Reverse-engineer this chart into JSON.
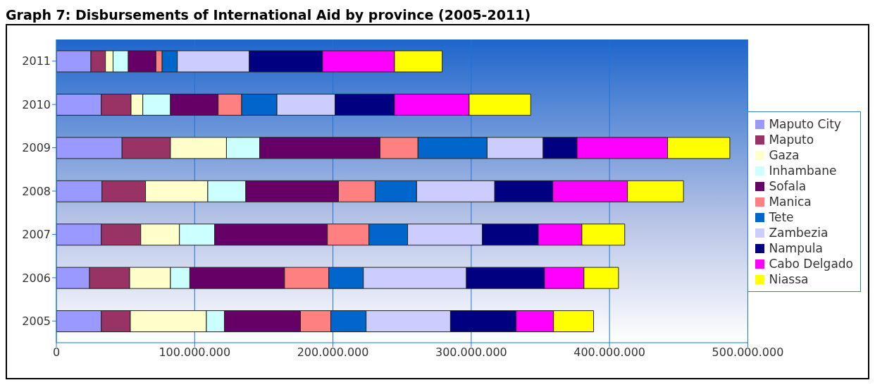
{
  "chart_data": {
    "type": "bar",
    "orientation": "horizontal",
    "stacked": true,
    "title": "Graph 7: Disbursements of International Aid by province (2005-2011)",
    "categories": [
      "2011",
      "2010",
      "2009",
      "2008",
      "2007",
      "2006",
      "2005"
    ],
    "series": [
      {
        "name": "Maputo City",
        "color": "#9999ff",
        "values": [
          25000000,
          32500000,
          47500000,
          33000000,
          32500000,
          24000000,
          32500000
        ]
      },
      {
        "name": "Maputo",
        "color": "#993366",
        "values": [
          10500000,
          21500000,
          35000000,
          31500000,
          28500000,
          29000000,
          21000000
        ]
      },
      {
        "name": "Gaza",
        "color": "#ffffcc",
        "values": [
          5500000,
          8500000,
          40500000,
          45000000,
          28000000,
          29500000,
          55000000
        ]
      },
      {
        "name": "Inhambane",
        "color": "#ccffff",
        "values": [
          11000000,
          20000000,
          24000000,
          27500000,
          25500000,
          14000000,
          13000000
        ]
      },
      {
        "name": "Sofala",
        "color": "#660066",
        "values": [
          20000000,
          34500000,
          87000000,
          67000000,
          81500000,
          68500000,
          55000000
        ]
      },
      {
        "name": "Manica",
        "color": "#ff8080",
        "values": [
          4500000,
          17000000,
          27500000,
          26500000,
          30000000,
          32000000,
          22000000
        ]
      },
      {
        "name": "Tete",
        "color": "#0066cc",
        "values": [
          11000000,
          25500000,
          50000000,
          30000000,
          28000000,
          25000000,
          25500000
        ]
      },
      {
        "name": "Zambezia",
        "color": "#ccccff",
        "values": [
          52000000,
          42000000,
          40500000,
          56500000,
          54000000,
          74500000,
          61000000
        ]
      },
      {
        "name": "Nampula",
        "color": "#000080",
        "values": [
          53000000,
          43000000,
          24500000,
          42000000,
          40500000,
          56500000,
          47500000
        ]
      },
      {
        "name": "Cabo Delgado",
        "color": "#ff00ff",
        "values": [
          52000000,
          54000000,
          65500000,
          54000000,
          31500000,
          28500000,
          27000000
        ]
      },
      {
        "name": "Niassa",
        "color": "#ffff00",
        "values": [
          34500000,
          44500000,
          45000000,
          40500000,
          31000000,
          25000000,
          29000000
        ]
      }
    ],
    "xlim": [
      0,
      500000000
    ],
    "xticks": [
      0,
      {
        "value": 100000000,
        "label": "100.000.000"
      },
      {
        "value": 200000000,
        "label": "200.000.000"
      },
      {
        "value": 300000000,
        "label": "300.000.000"
      },
      {
        "value": 400000000,
        "label": "400.000.000"
      },
      {
        "value": 500000000,
        "label": "500.000.000"
      }
    ],
    "grid": "x",
    "legend": "right"
  }
}
